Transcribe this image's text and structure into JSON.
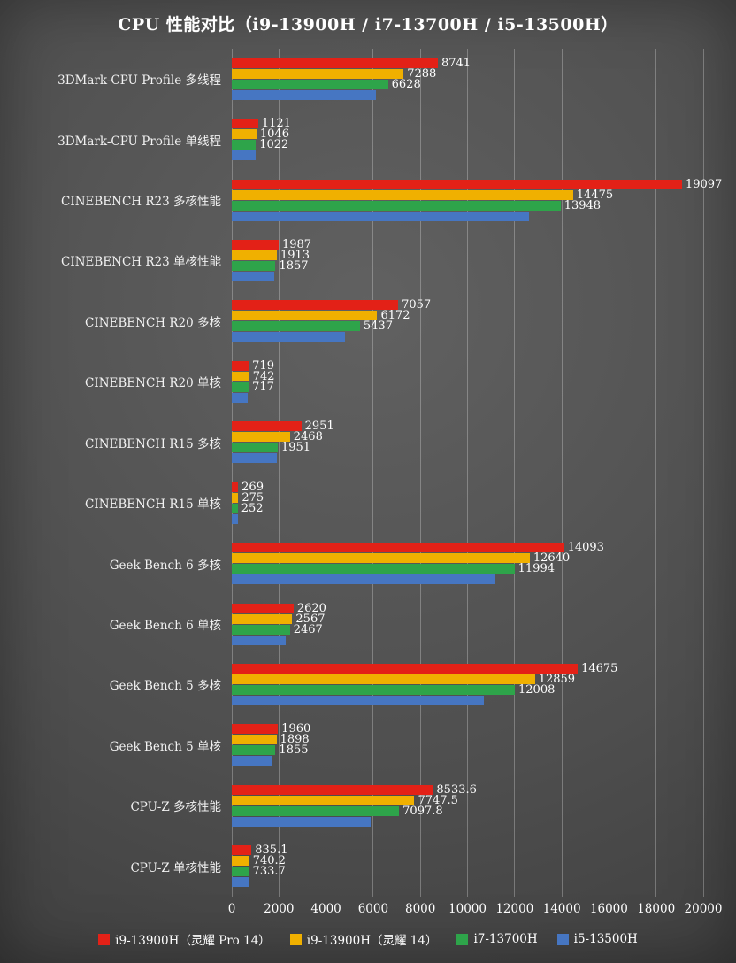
{
  "chart_data": {
    "type": "bar",
    "orientation": "horizontal",
    "title": "CPU 性能对比（i9-13900H / i7-13700H  / i5-13500H）",
    "categories": [
      "3DMark-CPU Profile 多线程",
      "3DMark-CPU Profile 单线程",
      "CINEBENCH R23 多核性能",
      "CINEBENCH R23 单核性能",
      "CINEBENCH R20 多核",
      "CINEBENCH R20 单核",
      "CINEBENCH R15 多核",
      "CINEBENCH R15 单核",
      "Geek Bench 6 多核",
      "Geek Bench 6 单核",
      "Geek Bench 5 多核",
      "Geek Bench 5 单核",
      "CPU-Z 多核性能",
      "CPU-Z 单核性能"
    ],
    "series": [
      {
        "name": "i9-13900H（灵耀 Pro 14）",
        "color": "#e32117",
        "show_value_labels": true,
        "values": [
          8741,
          1121,
          19097,
          1987,
          7057,
          719,
          2951,
          269,
          14093,
          2620,
          14675,
          1960,
          8533.6,
          835.1
        ]
      },
      {
        "name": "i9-13900H（灵耀 14）",
        "color": "#f0b000",
        "show_value_labels": true,
        "values": [
          7288,
          1046,
          14475,
          1913,
          6172,
          742,
          2468,
          275,
          12640,
          2567,
          12859,
          1898,
          7747.5,
          740.2
        ]
      },
      {
        "name": "i7-13700H",
        "color": "#2ea44a",
        "show_value_labels": true,
        "values": [
          6628,
          1022,
          13948,
          1857,
          5437,
          717,
          1951,
          252,
          11994,
          2467,
          12008,
          1855,
          7097.8,
          733.7
        ]
      },
      {
        "name": "i5-13500H",
        "color": "#4676c2",
        "show_value_labels": false,
        "values_estimated": true,
        "values": [
          6100,
          1000,
          12600,
          1800,
          4800,
          680,
          1900,
          250,
          11200,
          2300,
          10700,
          1700,
          5900,
          700
        ]
      }
    ],
    "xlim": [
      0,
      20000
    ],
    "x_ticks": [
      "0",
      "2000",
      "4000",
      "6000",
      "8000",
      "10000",
      "12000",
      "14000",
      "16000",
      "18000",
      "20000"
    ],
    "grid": "vertical",
    "legend_position": "bottom"
  },
  "colors": {
    "background": "#4e4e4e",
    "text": "#ffffff",
    "gridline": "#9a9a9a"
  }
}
